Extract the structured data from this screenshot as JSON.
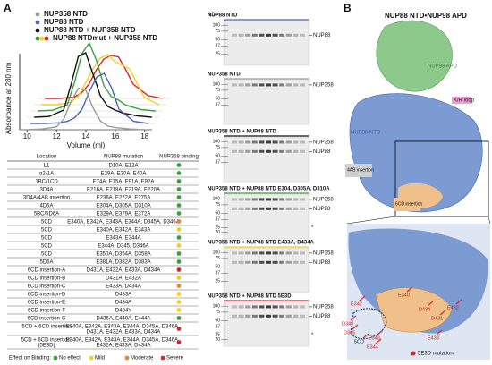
{
  "panel_labels": {
    "a": "A",
    "b": "B"
  },
  "chromatogram": {
    "type": "line",
    "ylabel": "Absorbance at 280 nm",
    "xlabel": "Volume (ml)",
    "xlim": [
      9.5,
      18.5
    ],
    "xticks": [
      10,
      12,
      14,
      16,
      18
    ],
    "legend": [
      {
        "name": "NUP358 NTD",
        "colors": [
          "#9a9a9a"
        ]
      },
      {
        "name": "NUP88 NTD",
        "colors": [
          "#4a64b0"
        ]
      },
      {
        "name": "NUP88 NTD + NUP358 NTD",
        "colors": [
          "#111111"
        ]
      },
      {
        "name": "NUP88 NTDmut + NUP358 NTD",
        "colors": [
          "#3aa040",
          "#f2d020",
          "#d8262c"
        ]
      }
    ],
    "x": [
      10,
      11,
      12,
      12.5,
      13,
      13.5,
      14,
      14.5,
      15,
      15.5,
      16,
      17,
      18
    ],
    "series": [
      {
        "color": "#d8262c",
        "values": [
          0,
          0,
          2,
          8,
          20,
          40,
          55,
          60,
          58,
          40,
          20,
          4,
          0
        ]
      },
      {
        "color": "#f2d020",
        "values": [
          0,
          0,
          3,
          12,
          30,
          50,
          65,
          70,
          60,
          55,
          50,
          10,
          0
        ]
      },
      {
        "color": "#3aa040",
        "values": [
          0,
          1,
          8,
          40,
          80,
          95,
          70,
          35,
          20,
          15,
          8,
          2,
          0
        ]
      },
      {
        "color": "#111111",
        "values": [
          0,
          1,
          10,
          45,
          85,
          90,
          60,
          30,
          15,
          10,
          6,
          2,
          0
        ]
      },
      {
        "color": "#4a64b0",
        "values": [
          0,
          0,
          1,
          3,
          8,
          20,
          45,
          65,
          70,
          50,
          20,
          3,
          0
        ]
      },
      {
        "color": "#9a9a9a",
        "values": [
          0,
          1,
          4,
          15,
          40,
          58,
          55,
          30,
          12,
          5,
          3,
          1,
          0
        ]
      }
    ]
  },
  "table": {
    "header": [
      "Location",
      "NUP88 mutation",
      "NUP358 binding"
    ],
    "rows": [
      [
        "L1",
        "D10A, E12A",
        "No effect"
      ],
      [
        "α2-1A",
        "E29A, E30A, E40A",
        "No effect"
      ],
      [
        "1BC/1CD",
        "E74A, E75A, E91A, E92A",
        "No effect"
      ],
      [
        "3D4A",
        "E216A, E218A, E219A, E220A",
        "No effect"
      ],
      [
        "3D4A/4AB insertion",
        "E236A, E272A, E275A",
        "No effect"
      ],
      [
        "4D5A",
        "E304A, D305A, D310A",
        "No effect"
      ],
      [
        "5BC/5D6A",
        "E329A, E379A, E372A",
        "No effect"
      ],
      [
        "5CD",
        "E340A, E342A, E343A, E344A, D345A, D346A",
        "Moderate"
      ],
      [
        "5CD",
        "E340A, E342A, E343A",
        "Mild"
      ],
      [
        "5CD",
        "E343A, E344A",
        "No effect"
      ],
      [
        "5CD",
        "E344A, D345, D346A",
        "Mild"
      ],
      [
        "5CD",
        "E350A, D354A, D358A",
        "No effect"
      ],
      [
        "5D6A",
        "E381A, D382A, D383A",
        "No effect"
      ],
      [
        "6CD insertion-A",
        "D431A, E432A, E433A, D434A",
        "Severe"
      ],
      [
        "6CD insertion-B",
        "D431A, E432A",
        "Mild"
      ],
      [
        "6CD insertion-C",
        "E433A, D434A",
        "Moderate"
      ],
      [
        "6CD insertion-D",
        "D433A",
        "Mild"
      ],
      [
        "6CD insertion-E",
        "D434A",
        "Mild"
      ],
      [
        "6CD insertion-F",
        "D434Y",
        "Mild"
      ],
      [
        "6CD insertion-G",
        "D436A, E440A, E444A",
        "No effect"
      ],
      [
        "5CD + 6CD insertion",
        "E340A, E342A, E343A, E344A, D345A, D346A, D431A, E432A, E433A, D434A",
        "Severe"
      ],
      [
        "5CD + 6CD insertion (5E3D)",
        "E340A, E342A, E343A, E344A, D345A, D346A, E432A, E433A, D434A",
        "Severe"
      ]
    ],
    "key_title": "Effect on Binding:",
    "key": [
      {
        "label": "No effect",
        "color": "#3aa040"
      },
      {
        "label": "Mild",
        "color": "#f2d020"
      },
      {
        "label": "Moderate",
        "color": "#e8862a"
      },
      {
        "label": "Severe",
        "color": "#d8262c"
      }
    ]
  },
  "gels": {
    "unit": "kDa",
    "panels": [
      {
        "title": "NUP88 NTD",
        "color": "#4a64b0",
        "markers": [
          100,
          75,
          50,
          37,
          25
        ],
        "bands": [
          "NUP88"
        ]
      },
      {
        "title": "NUP358 NTD",
        "color": "#9a9a9a",
        "markers": [
          100,
          75,
          50,
          37
        ],
        "bands": [
          "NUP358"
        ]
      },
      {
        "title": "NUP358 NTD + NUP88 NTD",
        "color": "#111111",
        "markers": [
          100,
          75,
          50,
          37
        ],
        "bands": [
          "NUP358",
          "NUP88"
        ]
      },
      {
        "title": "NUP358 NTD + NUP88 NTD E304, D305A, D310A",
        "color": "#3aa040",
        "markers": [
          100,
          75,
          50,
          37,
          25,
          20
        ],
        "bands": [
          "NUP358",
          "NUP88"
        ],
        "note": "*"
      },
      {
        "title": "NUP358 NTD + NUP88 NTD E433A, D434A",
        "color": "#f2d020",
        "markers": [
          100,
          75,
          50,
          37,
          25
        ],
        "bands": [
          "NUP358",
          "NUP88"
        ]
      },
      {
        "title": "NUP358 NTD + NUP88 NTD 5E3D",
        "color": "#d8262c",
        "markers": [
          100,
          75,
          50,
          37,
          25,
          20
        ],
        "bands": [
          "NUP358",
          "NUP88"
        ],
        "note": "*"
      }
    ]
  },
  "structure": {
    "title": "NUP88 NTD•NUP98 APD",
    "nup98": "NUP98 APD",
    "kr_loop": "K/R loop",
    "nup88": "NUP88 NTD",
    "ins4ab": "4AB insertion",
    "ins6cd": "6CD insertion",
    "residues": [
      "E340",
      "E342",
      "D346",
      "D345",
      "E343",
      "5CD",
      "E344",
      "D434",
      "D431",
      "E432",
      "E433"
    ],
    "mutation_key": "5E3D mutation"
  }
}
